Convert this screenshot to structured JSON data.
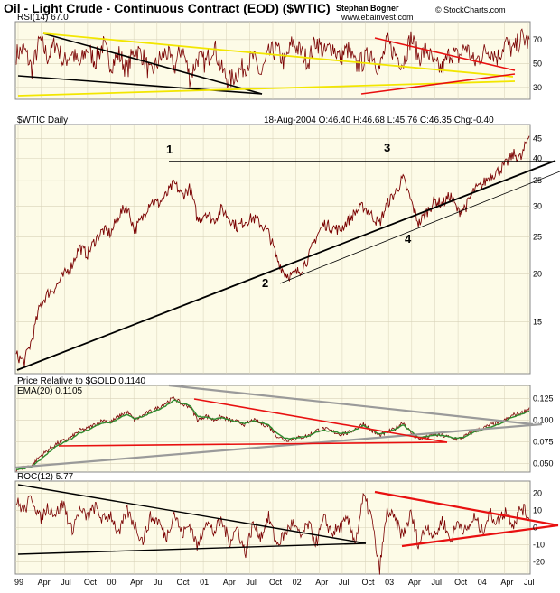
{
  "header": {
    "title": "Oil - Light Crude - Continuous Contract (EOD) ($WTIC)",
    "author": "Stephan Bogner",
    "website": "www.ebainvest.com",
    "brand": "© StockCharts.com"
  },
  "colors": {
    "panel_bg": "#fdfbe7",
    "page_bg": "#ffffff",
    "price": "#7a0000",
    "ema": "#2e8b2e",
    "trend_black": "#000000",
    "trend_yellow": "#f2e600",
    "trend_red": "#e81010",
    "trend_gray": "#9a9a9a",
    "grid": "#d8d2b8"
  },
  "chart_data": [
    {
      "type": "line",
      "panel": "rsi",
      "label": "RSI(14) 67.0",
      "y_ticks": [
        30,
        50,
        70
      ],
      "ylim": [
        20,
        85
      ],
      "last_value": 67.0,
      "x_range": [
        "1999-01",
        "2004-08"
      ],
      "series": [
        {
          "x": "monthly",
          "values": [
            58,
            62,
            45,
            70,
            55,
            68,
            50,
            60,
            48,
            63,
            52,
            66,
            49,
            58,
            44,
            62,
            57,
            40,
            52,
            60,
            46,
            64,
            38,
            55,
            50,
            66,
            45,
            35,
            42,
            48,
            55,
            40,
            58,
            62,
            50,
            68,
            60,
            52,
            70,
            58,
            65,
            55,
            62,
            48,
            52,
            60,
            45,
            68,
            58,
            50,
            72,
            55,
            62,
            48,
            45,
            60,
            55,
            65,
            50,
            58,
            62,
            55,
            68,
            60,
            72,
            67
          ]
        }
      ]
    },
    {
      "type": "line",
      "panel": "price",
      "label": "$WTIC Daily",
      "info": "18-Aug-2004 O:46.40 H:46.68 L:45.76 C:46.35 Chg:-0.40",
      "scale": "log",
      "y_ticks": [
        15,
        20,
        25,
        30,
        35,
        40,
        45
      ],
      "ylim": [
        11.0,
        49.0
      ],
      "x_range": [
        "1999-01",
        "2004-08"
      ],
      "annotations": [
        "1",
        "2",
        "3",
        "4"
      ],
      "series": [
        {
          "x": "monthly",
          "values": [
            12.3,
            11.8,
            13.5,
            16.5,
            17.8,
            18.5,
            19.8,
            21.0,
            23.5,
            22.5,
            24.5,
            26.0,
            25.5,
            28.5,
            30.0,
            26.0,
            28.0,
            31.0,
            30.5,
            32.0,
            34.5,
            32.0,
            33.5,
            27.5,
            29.0,
            27.5,
            29.5,
            28.0,
            26.5,
            27.5,
            28.0,
            27.0,
            25.5,
            22.0,
            20.0,
            19.8,
            20.5,
            22.0,
            25.0,
            27.0,
            26.5,
            26.0,
            27.5,
            29.0,
            30.0,
            28.5,
            27.0,
            30.5,
            32.5,
            35.5,
            31.0,
            27.0,
            29.0,
            31.0,
            30.5,
            32.0,
            29.0,
            30.0,
            33.0,
            34.0,
            36.0,
            37.0,
            38.5,
            41.0,
            40.0,
            46.35
          ]
        }
      ]
    },
    {
      "type": "line",
      "panel": "ratio",
      "label": "Price Relative to $GOLD 0.1140",
      "ema_label": "EMA(20) 0.1105",
      "y_ticks": [
        0.05,
        0.075,
        0.1,
        0.125
      ],
      "y_tick_labels": [
        "0.050",
        "0.075",
        "0.100",
        "0.125"
      ],
      "ylim": [
        0.04,
        0.14
      ],
      "x_range": [
        "1999-01",
        "2004-08"
      ],
      "series": [
        {
          "name": "Price Relative to $GOLD",
          "x": "monthly",
          "values": [
            0.043,
            0.045,
            0.048,
            0.058,
            0.065,
            0.072,
            0.076,
            0.08,
            0.088,
            0.09,
            0.095,
            0.1,
            0.098,
            0.104,
            0.11,
            0.1,
            0.105,
            0.11,
            0.114,
            0.12,
            0.126,
            0.118,
            0.116,
            0.1,
            0.105,
            0.1,
            0.104,
            0.1,
            0.098,
            0.095,
            0.1,
            0.096,
            0.093,
            0.082,
            0.077,
            0.078,
            0.08,
            0.082,
            0.088,
            0.09,
            0.087,
            0.084,
            0.085,
            0.09,
            0.096,
            0.088,
            0.082,
            0.086,
            0.09,
            0.098,
            0.085,
            0.078,
            0.08,
            0.083,
            0.082,
            0.08,
            0.078,
            0.082,
            0.087,
            0.09,
            0.094,
            0.097,
            0.1,
            0.106,
            0.108,
            0.114
          ]
        },
        {
          "name": "EMA(20)",
          "x": "monthly",
          "values": [
            0.043,
            0.044,
            0.046,
            0.054,
            0.062,
            0.069,
            0.074,
            0.078,
            0.085,
            0.088,
            0.093,
            0.097,
            0.097,
            0.102,
            0.107,
            0.101,
            0.104,
            0.108,
            0.112,
            0.117,
            0.123,
            0.119,
            0.117,
            0.104,
            0.104,
            0.101,
            0.103,
            0.1,
            0.098,
            0.096,
            0.099,
            0.097,
            0.094,
            0.085,
            0.079,
            0.079,
            0.08,
            0.081,
            0.086,
            0.088,
            0.087,
            0.085,
            0.085,
            0.089,
            0.094,
            0.089,
            0.084,
            0.086,
            0.089,
            0.095,
            0.087,
            0.08,
            0.081,
            0.083,
            0.082,
            0.08,
            0.079,
            0.081,
            0.086,
            0.089,
            0.092,
            0.095,
            0.099,
            0.104,
            0.107,
            0.1105
          ]
        }
      ]
    },
    {
      "type": "line",
      "panel": "roc",
      "label": "ROC(12) 5.77",
      "y_ticks": [
        20,
        10,
        0,
        -10,
        -20
      ],
      "y_tick_labels": [
        "20",
        "10",
        "0",
        "-10",
        "-20"
      ],
      "ylim": [
        -27,
        27
      ],
      "x_range": [
        "1999-01",
        "2004-08"
      ],
      "series": [
        {
          "x": "monthly",
          "values": [
            15,
            10,
            18,
            5,
            12,
            8,
            14,
            -2,
            10,
            6,
            12,
            4,
            8,
            -5,
            10,
            2,
            -8,
            6,
            4,
            -6,
            9,
            -4,
            2,
            -12,
            5,
            -3,
            4,
            -8,
            0,
            -15,
            2,
            -5,
            6,
            -10,
            -4,
            3,
            -6,
            2,
            -9,
            5,
            -3,
            0,
            4,
            -8,
            18,
            6,
            -25,
            10,
            4,
            -5,
            8,
            -10,
            2,
            -6,
            5,
            -8,
            4,
            -3,
            6,
            -2,
            8,
            3,
            10,
            2,
            12,
            5.77
          ]
        }
      ]
    }
  ],
  "x_axis": {
    "labels": [
      "99",
      "Apr",
      "Jul",
      "Oct",
      "00",
      "Apr",
      "Jul",
      "Oct",
      "01",
      "Apr",
      "Jul",
      "Oct",
      "02",
      "Apr",
      "Jul",
      "Oct",
      "03",
      "Apr",
      "Jul",
      "Oct",
      "04",
      "Apr",
      "Jul"
    ]
  }
}
